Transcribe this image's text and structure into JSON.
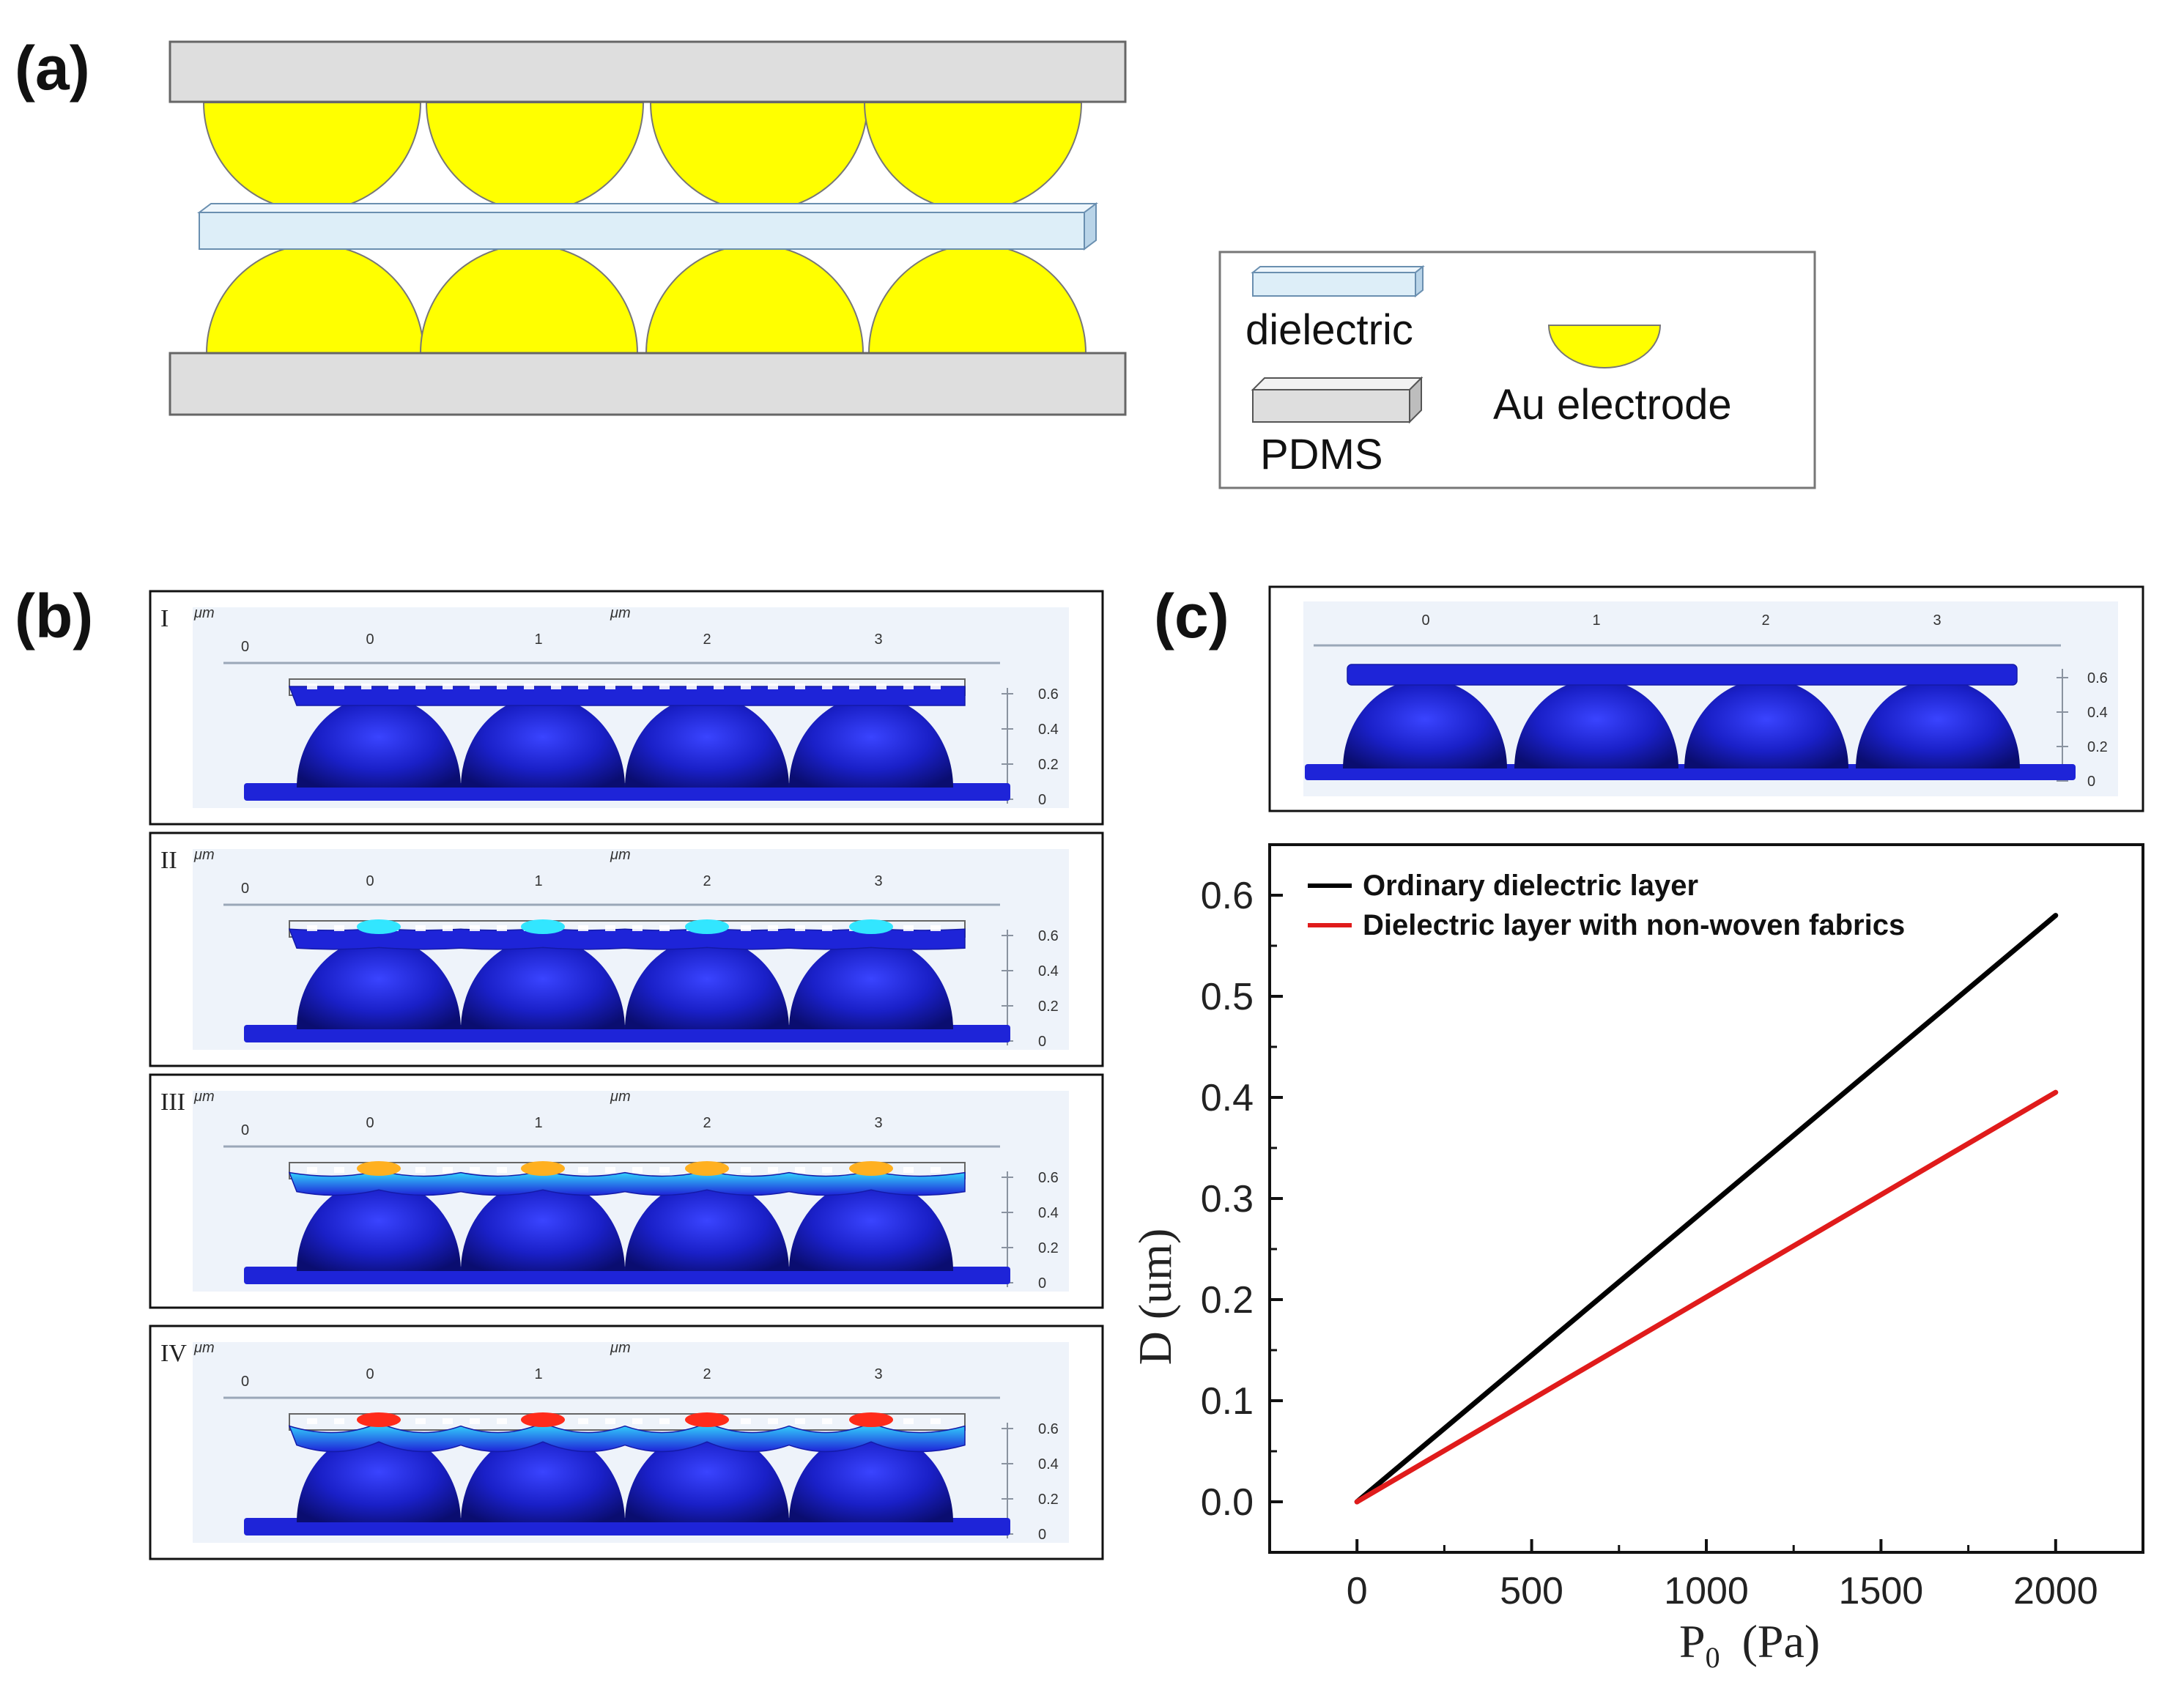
{
  "panel_labels": {
    "a": "(a)",
    "b": "(b)",
    "c": "(c)"
  },
  "legend_a": {
    "dielectric": "dielectric",
    "pdms": "PDMS",
    "au_electrode": "Au electrode"
  },
  "colors": {
    "pdms_fill": "#dedede",
    "au_fill": "#ffff00",
    "dielectric_fill": "#ddeef8",
    "sim_bg": "#eef3fa",
    "sim_blue": "#1e24d8",
    "line_black": "#000000",
    "line_red": "#e01b1b"
  },
  "sim_panels": [
    {
      "roman": "I",
      "unit_left": "μm",
      "unit_center": "μm",
      "zero": "0",
      "x_ticks": [
        "0",
        "1",
        "2",
        "3"
      ],
      "y_ticks": [
        "0.6",
        "0.4",
        "0.2",
        "0"
      ]
    },
    {
      "roman": "II",
      "unit_left": "μm",
      "unit_center": "μm",
      "zero": "0",
      "x_ticks": [
        "0",
        "1",
        "2",
        "3"
      ],
      "y_ticks": [
        "0.6",
        "0.4",
        "0.2",
        "0"
      ]
    },
    {
      "roman": "III",
      "unit_left": "μm",
      "unit_center": "μm",
      "zero": "0",
      "x_ticks": [
        "0",
        "1",
        "2",
        "3"
      ],
      "y_ticks": [
        "0.6",
        "0.4",
        "0.2",
        "0"
      ]
    },
    {
      "roman": "IV",
      "unit_left": "μm",
      "unit_center": "μm",
      "zero": "0",
      "x_ticks": [
        "0",
        "1",
        "2",
        "3"
      ],
      "y_ticks": [
        "0.6",
        "0.4",
        "0.2",
        "0"
      ]
    }
  ],
  "sim_c": {
    "x_ticks": [
      "0",
      "1",
      "2",
      "3"
    ],
    "y_ticks": [
      "0.6",
      "0.4",
      "0.2",
      "0"
    ]
  },
  "chart_data": {
    "type": "line",
    "title": "",
    "xlabel_main": "P",
    "xlabel_sub": "0",
    "xlabel_unit": "(Pa)",
    "ylabel": "D (um)",
    "xlim": [
      -250,
      2250
    ],
    "ylim": [
      -0.05,
      0.65
    ],
    "x_ticks": [
      0,
      500,
      1000,
      1500,
      2000
    ],
    "y_ticks": [
      0.0,
      0.1,
      0.2,
      0.3,
      0.4,
      0.5,
      0.6
    ],
    "x_tick_labels": [
      "0",
      "500",
      "1000",
      "1500",
      "2000"
    ],
    "y_tick_labels": [
      "0.0",
      "0.1",
      "0.2",
      "0.3",
      "0.4",
      "0.5",
      "0.6"
    ],
    "legend_position": "top-left",
    "series": [
      {
        "name": "Ordinary dielectric layer",
        "color": "#000000",
        "x": [
          0,
          2000
        ],
        "y": [
          0.0,
          0.58
        ]
      },
      {
        "name": "Dielectric layer with non-woven fabrics",
        "color": "#e01b1b",
        "x": [
          0,
          2000
        ],
        "y": [
          0.0,
          0.405
        ]
      }
    ]
  }
}
